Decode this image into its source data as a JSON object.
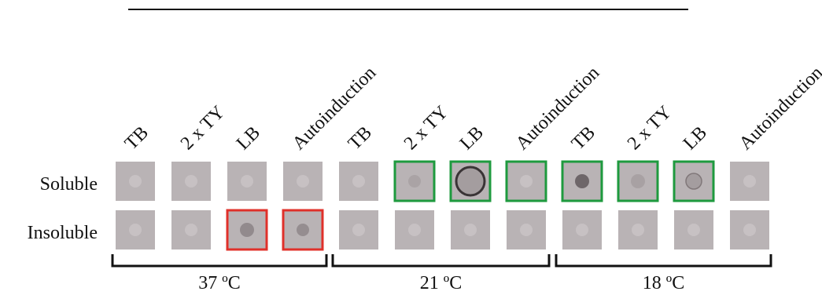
{
  "column_labels": [
    "TB",
    "2 x TY",
    "LB",
    "Autoinduction",
    "TB",
    "2 x TY",
    "LB",
    "Autoinduction",
    "TB",
    "2 x TY",
    "LB",
    "Autoinduction"
  ],
  "row_labels": [
    "Soluble",
    "Insoluble"
  ],
  "group_labels": [
    "37 ºC",
    "21 ºC",
    "18 ºC"
  ]
}
